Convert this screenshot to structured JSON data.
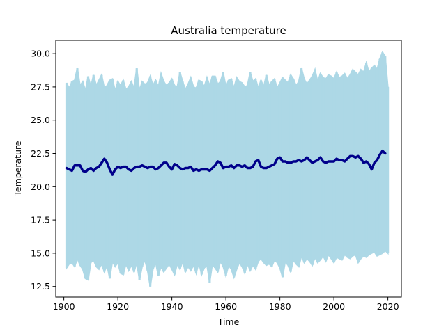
{
  "chart_data": {
    "type": "line",
    "title": "Australia temperature",
    "xlabel": "Time",
    "ylabel": "Temperature",
    "xlim": [
      1897,
      2025
    ],
    "ylim": [
      11.7,
      31.0
    ],
    "xticks": [
      1900,
      1920,
      1940,
      1960,
      1980,
      2000,
      2020
    ],
    "yticks": [
      12.5,
      15.0,
      17.5,
      20.0,
      22.5,
      25.0,
      27.5,
      30.0
    ],
    "grid": false,
    "series": [
      {
        "kind": "monthly",
        "color": "#add8e6",
        "x_start": 1901,
        "x_end": 2020,
        "annual_max": [
          27.8,
          27.4,
          27.9,
          28.0,
          28.9,
          27.6,
          27.9,
          27.2,
          28.3,
          27.5,
          28.4,
          27.6,
          28.0,
          28.4,
          27.4,
          27.6,
          28.0,
          28.1,
          27.2,
          27.9,
          27.6,
          28.0,
          27.3,
          27.5,
          27.9,
          27.4,
          28.9,
          27.2,
          27.9,
          27.7,
          27.8,
          28.3,
          27.6,
          28.0,
          27.5,
          28.5,
          27.9,
          27.6,
          27.8,
          28.1,
          27.6,
          27.5,
          28.6,
          27.9,
          27.3,
          27.7,
          28.2,
          27.5,
          27.4,
          28.0,
          27.9,
          27.5,
          28.2,
          27.6,
          28.3,
          28.3,
          27.7,
          27.9,
          28.6,
          27.5,
          28.0,
          28.1,
          27.4,
          28.2,
          27.9,
          27.8,
          27.5,
          27.6,
          28.6,
          27.9,
          28.1,
          27.4,
          28.0,
          27.5,
          28.4,
          27.6,
          27.9,
          28.1,
          27.4,
          27.8,
          28.2,
          28.0,
          27.8,
          28.4,
          28.1,
          27.6,
          27.9,
          28.9,
          28.1,
          27.7,
          28.0,
          28.3,
          28.8,
          27.9,
          28.5,
          28.2,
          28.1,
          28.4,
          28.3,
          28.1,
          28.6,
          28.2,
          28.3,
          28.5,
          28.1,
          28.4,
          28.8,
          28.6,
          28.4,
          28.8,
          28.6,
          29.3,
          28.6,
          28.9,
          29.1,
          28.8,
          29.6,
          30.1,
          29.8,
          27.5
        ],
        "annual_min": [
          13.9,
          14.2,
          14.3,
          14.0,
          14.6,
          14.1,
          13.8,
          13.1,
          13.0,
          14.3,
          14.5,
          14.0,
          13.8,
          14.2,
          13.6,
          14.1,
          13.1,
          14.4,
          14.0,
          14.3,
          13.5,
          13.4,
          14.2,
          13.7,
          14.1,
          13.6,
          14.3,
          13.0,
          14.0,
          14.5,
          13.7,
          12.5,
          13.8,
          14.3,
          13.3,
          14.0,
          13.6,
          13.9,
          14.2,
          13.8,
          13.4,
          14.2,
          13.8,
          14.4,
          13.6,
          14.0,
          13.7,
          14.1,
          13.5,
          14.3,
          13.4,
          13.9,
          14.1,
          12.8,
          14.2,
          13.9,
          13.6,
          14.4,
          14.0,
          13.3,
          14.1,
          13.8,
          13.2,
          13.8,
          14.3,
          14.0,
          13.5,
          14.2,
          13.7,
          14.1,
          13.8,
          14.4,
          14.6,
          14.3,
          14.1,
          14.2,
          14.0,
          14.5,
          14.3,
          13.9,
          13.2,
          14.4,
          14.1,
          13.6,
          14.5,
          14.2,
          14.0,
          14.8,
          14.3,
          14.6,
          14.4,
          14.1,
          14.7,
          14.3,
          14.5,
          14.8,
          14.4,
          14.9,
          14.6,
          14.3,
          14.7,
          14.6,
          14.5,
          14.9,
          14.7,
          14.6,
          14.8,
          14.9,
          14.3,
          14.6,
          14.8,
          14.7,
          14.9,
          15.0,
          15.1,
          14.8,
          14.9,
          15.0,
          15.2,
          15.0
        ]
      },
      {
        "kind": "smoothed",
        "color": "#00008b",
        "x_start": 1901,
        "x_end": 2019,
        "values": [
          21.4,
          21.3,
          21.2,
          21.6,
          21.6,
          21.6,
          21.2,
          21.1,
          21.3,
          21.4,
          21.2,
          21.4,
          21.5,
          21.8,
          22.1,
          21.8,
          21.3,
          20.9,
          21.3,
          21.5,
          21.4,
          21.5,
          21.5,
          21.3,
          21.2,
          21.4,
          21.5,
          21.5,
          21.6,
          21.5,
          21.4,
          21.5,
          21.5,
          21.3,
          21.4,
          21.6,
          21.8,
          21.8,
          21.5,
          21.3,
          21.7,
          21.6,
          21.4,
          21.3,
          21.4,
          21.4,
          21.5,
          21.2,
          21.3,
          21.2,
          21.3,
          21.3,
          21.3,
          21.2,
          21.4,
          21.6,
          21.9,
          21.8,
          21.4,
          21.5,
          21.5,
          21.6,
          21.4,
          21.6,
          21.6,
          21.5,
          21.6,
          21.4,
          21.4,
          21.5,
          21.9,
          22.0,
          21.5,
          21.4,
          21.4,
          21.5,
          21.6,
          21.7,
          22.1,
          22.2,
          21.9,
          21.9,
          21.8,
          21.8,
          21.9,
          21.9,
          22.0,
          21.9,
          22.0,
          22.2,
          22.0,
          21.8,
          21.9,
          22.0,
          22.2,
          21.9,
          21.8,
          21.9,
          21.9,
          21.9,
          22.1,
          22.0,
          22.0,
          21.9,
          22.1,
          22.3,
          22.3,
          22.2,
          22.3,
          22.1,
          21.8,
          21.9,
          21.7,
          21.3,
          21.8,
          22.0,
          22.4,
          22.7,
          22.5
        ]
      }
    ]
  }
}
